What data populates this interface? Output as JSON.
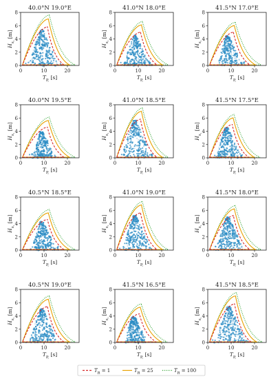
{
  "figure": {
    "xlabel": "T_P, [s]",
    "ylabel": "H_s, [m]",
    "xticks": [
      0,
      10,
      20
    ],
    "yticks": [
      0,
      2,
      4,
      6,
      8
    ],
    "xlim": [
      0,
      25
    ],
    "ylim": [
      0,
      8
    ],
    "scatter_color": "#2b8cc4",
    "legend": {
      "placement": "bottom-center",
      "entries": [
        {
          "label": "T_R = 1",
          "color": "#d62728",
          "style": "dashed"
        },
        {
          "label": "T_R = 25",
          "color": "#e8a100",
          "style": "solid"
        },
        {
          "label": "T_R = 100",
          "color": "#2ca02c",
          "style": "dotted"
        }
      ]
    }
  },
  "chart_data": [
    {
      "type": "scatter",
      "title": "40.0°N 19.0°E",
      "peak_tp": 10.5,
      "hs_max_points": 5.4,
      "contour_peaks": {
        "T_R = 1": 5.8,
        "T_R = 25": 7.0,
        "T_R = 100": 7.6
      }
    },
    {
      "type": "scatter",
      "title": "41.0°N 18.0°E",
      "peak_tp": 10.0,
      "hs_max_points": 4.6,
      "contour_peaks": {
        "T_R = 1": 5.0,
        "T_R = 25": 6.1,
        "T_R = 100": 6.6
      }
    },
    {
      "type": "scatter",
      "title": "41.5°N 17.0°E",
      "peak_tp": 10.0,
      "hs_max_points": 4.5,
      "contour_peaks": {
        "T_R = 1": 5.0,
        "T_R = 25": 6.0,
        "T_R = 100": 6.5
      }
    },
    {
      "type": "scatter",
      "title": "40.0°N 19.5°E",
      "peak_tp": 10.5,
      "hs_max_points": 3.9,
      "contour_peaks": {
        "T_R = 1": 4.6,
        "T_R = 25": 5.6,
        "T_R = 100": 6.1
      }
    },
    {
      "type": "scatter",
      "title": "41.0°N 18.5°E",
      "peak_tp": 10.0,
      "hs_max_points": 5.6,
      "contour_peaks": {
        "T_R = 1": 5.8,
        "T_R = 25": 7.0,
        "T_R = 100": 7.5
      }
    },
    {
      "type": "scatter",
      "title": "41.5°N 17.5°E",
      "peak_tp": 9.5,
      "hs_max_points": 4.6,
      "contour_peaks": {
        "T_R = 1": 5.0,
        "T_R = 25": 6.0,
        "T_R = 100": 6.5
      }
    },
    {
      "type": "scatter",
      "title": "40.5°N 18.5°E",
      "peak_tp": 10.5,
      "hs_max_points": 4.4,
      "contour_peaks": {
        "T_R = 1": 4.6,
        "T_R = 25": 5.6,
        "T_R = 100": 6.1
      }
    },
    {
      "type": "scatter",
      "title": "41.0°N 19.0°E",
      "peak_tp": 10.0,
      "hs_max_points": 5.2,
      "contour_peaks": {
        "T_R = 1": 5.6,
        "T_R = 25": 6.8,
        "T_R = 100": 7.3
      }
    },
    {
      "type": "scatter",
      "title": "41.5°N 18.0°E",
      "peak_tp": 10.0,
      "hs_max_points": 5.0,
      "contour_peaks": {
        "T_R = 1": 5.2,
        "T_R = 25": 6.2,
        "T_R = 100": 6.7
      }
    },
    {
      "type": "scatter",
      "title": "40.5°N 19.0°E",
      "peak_tp": 10.5,
      "hs_max_points": 5.1,
      "contour_peaks": {
        "T_R = 1": 5.4,
        "T_R = 25": 6.5,
        "T_R = 100": 7.0
      }
    },
    {
      "type": "scatter",
      "title": "41.5°N 16.5°E",
      "peak_tp": 9.5,
      "hs_max_points": 4.0,
      "contour_peaks": {
        "T_R = 1": 4.3,
        "T_R = 25": 5.3,
        "T_R = 100": 5.8
      }
    },
    {
      "type": "scatter",
      "title": "41.5°N 18.5°E",
      "peak_tp": 10.5,
      "hs_max_points": 5.5,
      "contour_peaks": {
        "T_R = 1": 5.8,
        "T_R = 25": 7.0,
        "T_R = 100": 7.5
      }
    }
  ]
}
